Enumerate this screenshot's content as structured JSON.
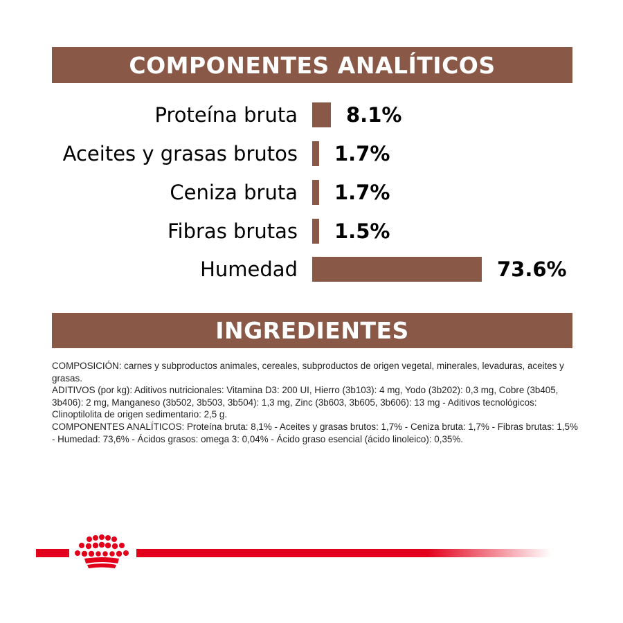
{
  "headers": {
    "analytics": "COMPONENTES ANALÍTICOS",
    "ingredients": "INGREDIENTES"
  },
  "chart_data": {
    "type": "bar",
    "orientation": "horizontal",
    "title": "COMPONENTES ANALÍTICOS",
    "categories": [
      "Proteína bruta",
      "Aceites y grasas brutos",
      "Ceniza bruta",
      "Fibras brutas",
      "Humedad"
    ],
    "values": [
      8.1,
      1.7,
      1.7,
      1.5,
      73.6
    ],
    "value_labels": [
      "8.1%",
      "1.7%",
      "1.7%",
      "1.5%",
      "73.6%"
    ],
    "unit": "%",
    "xlim": [
      0,
      73.6
    ],
    "grid": false,
    "legend": "none",
    "bar_color": "#8a5847"
  },
  "ingredients_text": [
    "COMPOSICIÓN: carnes y subproductos animales, cereales, subproductos de origen vegetal, minerales, levaduras, aceites y grasas.",
    "ADITIVOS (por kg): Aditivos nutricionales: Vitamina D3: 200 UI, Hierro (3b103): 4 mg, Yodo (3b202): 0,3 mg, Cobre (3b405, 3b406): 2 mg, Manganeso (3b502, 3b503, 3b504): 1,3 mg, Zinc (3b603, 3b605, 3b606): 13 mg - Aditivos tecnológicos: Clinoptilolita de origen sedimentario: 2,5 g.",
    "COMPONENTES ANALÍTICOS: Proteína bruta: 8,1% - Aceites y grasas brutos: 1,7% - Ceniza bruta: 1,7% - Fibras brutas: 1,5% - Humedad: 73,6% - Ácidos grasos: omega 3: 0,04% - Ácido graso esencial (ácido linoleico): 0,35%."
  ],
  "colors": {
    "brand_brown": "#8a5847",
    "brand_red": "#e2001a"
  },
  "logo_icon": "royal-canin-crown-icon"
}
